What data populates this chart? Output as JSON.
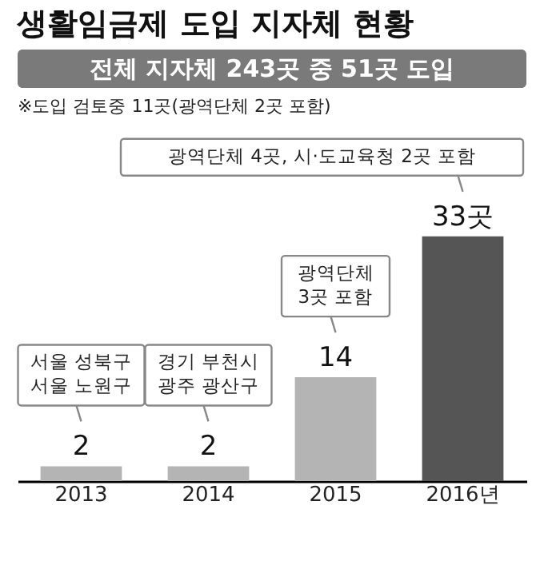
{
  "chart_data": {
    "type": "bar",
    "title": "생활임금제 도입 지자체 현황",
    "subtitle": "전체 지자체 243곳 중 51곳 도입",
    "categories": [
      "2013",
      "2014",
      "2015",
      "2016년"
    ],
    "values": [
      2,
      2,
      14,
      33
    ],
    "colors": [
      "#b4b4b4",
      "#b4b4b4",
      "#b4b4b4",
      "#555555"
    ],
    "value_labels": [
      "2",
      "2",
      "14",
      "33곳"
    ],
    "grid": false,
    "annotations": [
      "※도입 검토중 11곳(광역단체 2곳 포함)",
      "서울 성북구\n서울 노원구",
      "경기 부천시\n광주 광산구",
      "광역단체\n3곳 포함",
      "광역단체 4곳, 시·도교육청 2곳 포함"
    ]
  }
}
